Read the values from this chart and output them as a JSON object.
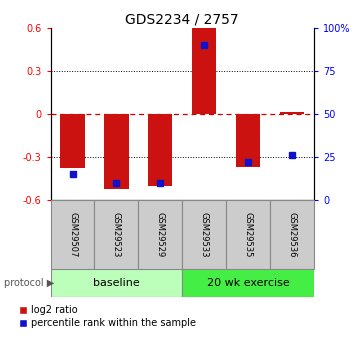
{
  "title": "GDS2234 / 2757",
  "samples": [
    "GSM29507",
    "GSM29523",
    "GSM29529",
    "GSM29533",
    "GSM29535",
    "GSM29536"
  ],
  "log2_ratio": [
    -0.38,
    -0.52,
    -0.5,
    0.6,
    -0.37,
    0.01
  ],
  "percentile_rank": [
    0.15,
    0.1,
    0.1,
    0.9,
    0.22,
    0.26
  ],
  "bar_color": "#cc1111",
  "dot_color": "#1111cc",
  "ylim": [
    -0.6,
    0.6
  ],
  "yticks": [
    -0.6,
    -0.3,
    0.0,
    0.3,
    0.6
  ],
  "right_yticks": [
    0,
    25,
    50,
    75,
    100
  ],
  "baseline_color": "#bbffbb",
  "exercise_color": "#44ee44",
  "sample_box_color": "#cccccc",
  "protocol_label": "protocol",
  "baseline_label": "baseline",
  "exercise_label": "20 wk exercise",
  "legend_red_label": "log2 ratio",
  "legend_blue_label": "percentile rank within the sample",
  "title_fontsize": 10,
  "tick_fontsize": 7,
  "sample_fontsize": 6,
  "proto_fontsize": 8,
  "legend_fontsize": 7
}
